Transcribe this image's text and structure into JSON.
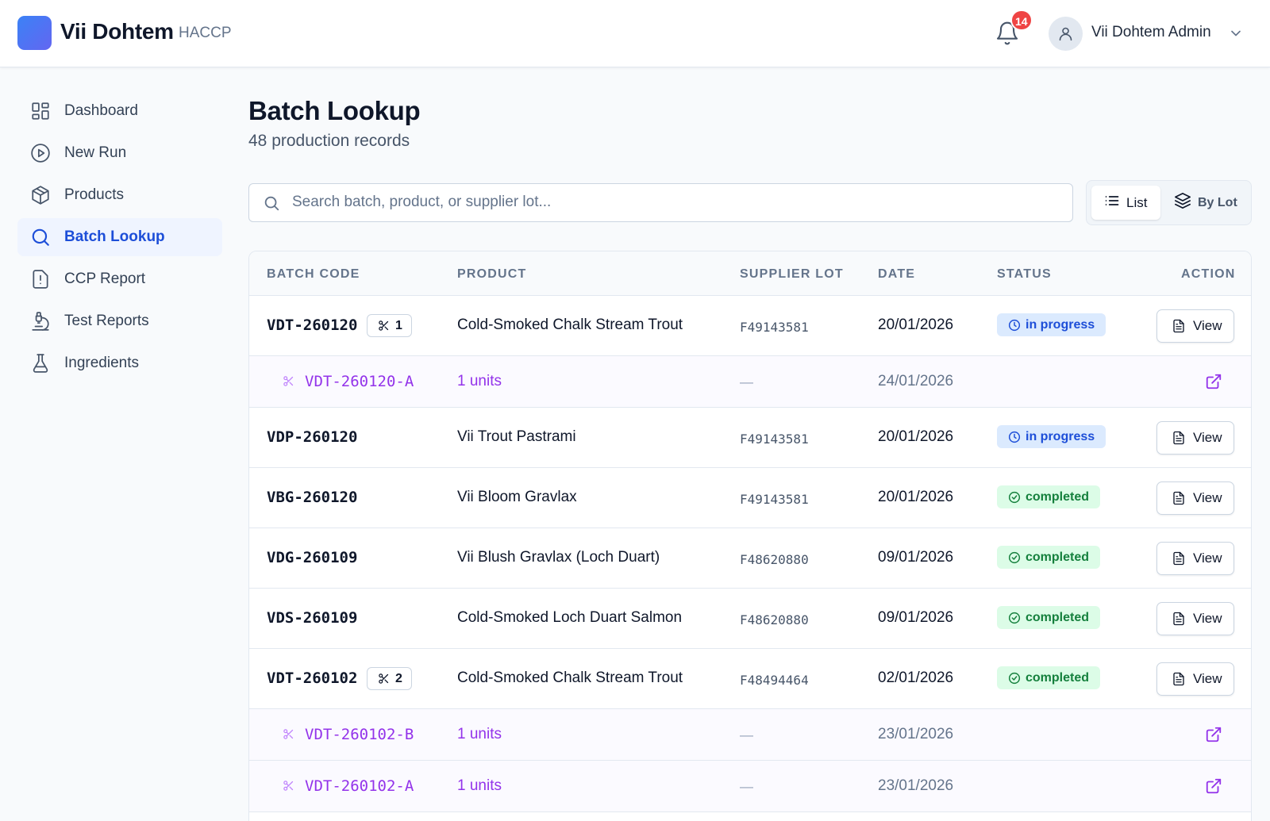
{
  "app": {
    "name": "Vii Dohtem",
    "module": "HACCP"
  },
  "header": {
    "notification_count": "14",
    "user_name": "Vii Dohtem Admin"
  },
  "sidebar": {
    "items": [
      {
        "label": "Dashboard",
        "icon": "dashboard-icon"
      },
      {
        "label": "New Run",
        "icon": "play-circle-icon"
      },
      {
        "label": "Products",
        "icon": "box-icon"
      },
      {
        "label": "Batch Lookup",
        "icon": "search-icon",
        "active": true
      },
      {
        "label": "CCP Report",
        "icon": "alert-file-icon"
      },
      {
        "label": "Test Reports",
        "icon": "microscope-icon"
      },
      {
        "label": "Ingredients",
        "icon": "flask-icon"
      }
    ]
  },
  "main": {
    "title": "Batch Lookup",
    "subtitle": "48 production records",
    "search_placeholder": "Search batch, product, or supplier lot...",
    "view_toggle": {
      "list_label": "List",
      "lot_label": "By Lot"
    },
    "columns": [
      "BATCH CODE",
      "PRODUCT",
      "SUPPLIER LOT",
      "DATE",
      "STATUS",
      "ACTION"
    ],
    "view_label": "View",
    "rows": [
      {
        "code": "VDT-260120",
        "splits": "1",
        "product": "Cold-Smoked Chalk Stream Trout",
        "lot": "F49143581",
        "date": "20/01/2026",
        "status": "in progress"
      },
      {
        "sub": true,
        "code": "VDT-260120-A",
        "units": "1 units",
        "lot": "—",
        "date": "24/01/2026"
      },
      {
        "code": "VDP-260120",
        "product": "Vii Trout Pastrami",
        "lot": "F49143581",
        "date": "20/01/2026",
        "status": "in progress"
      },
      {
        "code": "VBG-260120",
        "product": "Vii Bloom Gravlax",
        "lot": "F49143581",
        "date": "20/01/2026",
        "status": "completed"
      },
      {
        "code": "VDG-260109",
        "product": "Vii Blush Gravlax (Loch Duart)",
        "lot": "F48620880",
        "date": "09/01/2026",
        "status": "completed"
      },
      {
        "code": "VDS-260109",
        "product": "Cold-Smoked Loch Duart Salmon",
        "lot": "F48620880",
        "date": "09/01/2026",
        "status": "completed"
      },
      {
        "code": "VDT-260102",
        "splits": "2",
        "product": "Cold-Smoked Chalk Stream Trout",
        "lot": "F48494464",
        "date": "02/01/2026",
        "status": "completed"
      },
      {
        "sub": true,
        "code": "VDT-260102-B",
        "units": "1 units",
        "lot": "—",
        "date": "23/01/2026"
      },
      {
        "sub": true,
        "code": "VDT-260102-A",
        "units": "1 units",
        "lot": "—",
        "date": "23/01/2026"
      }
    ]
  },
  "colors": {
    "accent": "#1d4ed8",
    "split_purple": "#9333ea",
    "progress_bg": "#dbeafe",
    "completed_bg": "#dcfce7",
    "badge_red": "#ef4444"
  }
}
